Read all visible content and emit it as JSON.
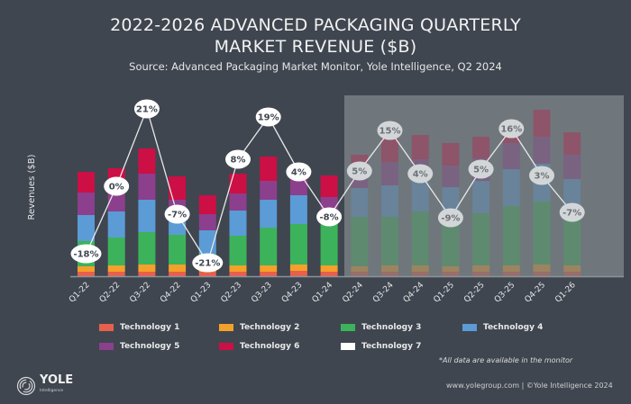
{
  "header": {
    "title_line1": "2022-2026 ADVANCED PACKAGING QUARTERLY",
    "title_line2": "MARKET REVENUE ($B)",
    "subtitle": "Source: Advanced Packaging Market Monitor, Yole Intelligence, Q2 2024"
  },
  "chart_data": {
    "type": "bar",
    "stacked": true,
    "title": "2022-2026 ADVANCED PACKAGING QUARTERLY MARKET REVENUE ($B)",
    "ylabel": "Revenues ($B)",
    "xlabel": "",
    "categories": [
      "Q1-22",
      "Q2-22",
      "Q3-22",
      "Q4-22",
      "Q1-23",
      "Q2-23",
      "Q3-23",
      "Q4-23",
      "Q1-24",
      "Q2-24",
      "Q3-24",
      "Q4-24",
      "Q1-25",
      "Q2-25",
      "Q3-25",
      "Q4-25",
      "Q1-26"
    ],
    "forecast_start_index": 9,
    "series": [
      {
        "name": "Technology 1",
        "color": "#e8604c",
        "values": [
          0.5,
          0.5,
          0.5,
          0.5,
          0.5,
          0.5,
          0.5,
          0.6,
          0.5,
          0.5,
          0.5,
          0.5,
          0.5,
          0.5,
          0.5,
          0.5,
          0.5
        ]
      },
      {
        "name": "Technology 2",
        "color": "#f5a02a",
        "values": [
          0.6,
          0.7,
          0.8,
          0.8,
          0.6,
          0.7,
          0.7,
          0.7,
          0.7,
          0.6,
          0.7,
          0.7,
          0.6,
          0.7,
          0.7,
          0.8,
          0.7
        ]
      },
      {
        "name": "Technology 3",
        "color": "#3cb35a",
        "values": [
          2.8,
          3.1,
          3.6,
          3.3,
          1.4,
          3.3,
          4.2,
          4.5,
          4.7,
          5.5,
          5.4,
          6.0,
          5.0,
          5.8,
          6.6,
          7.0,
          6.1
        ]
      },
      {
        "name": "Technology 4",
        "color": "#5b9bd6",
        "values": [
          2.9,
          2.9,
          3.6,
          1.5,
          2.6,
          2.8,
          3.1,
          3.2,
          0.8,
          3.2,
          3.5,
          3.5,
          3.8,
          3.6,
          4.1,
          4.2,
          3.5
        ]
      },
      {
        "name": "Technology 5",
        "color": "#8c3f8c",
        "values": [
          2.5,
          2.5,
          2.9,
          2.4,
          1.8,
          1.9,
          2.1,
          1.7,
          2.1,
          2.2,
          2.6,
          2.3,
          2.4,
          2.5,
          2.9,
          3.0,
          2.7
        ]
      },
      {
        "name": "Technology 6",
        "color": "#cc0f45",
        "values": [
          2.3,
          2.3,
          2.8,
          2.6,
          2.1,
          2.2,
          2.7,
          1.4,
          2.4,
          1.5,
          2.6,
          2.7,
          2.5,
          2.4,
          2.5,
          3.0,
          2.5
        ]
      },
      {
        "name": "Technology 7",
        "color": "#ffffff",
        "values": [
          0,
          0,
          0,
          0,
          0,
          0,
          0,
          0,
          0,
          0,
          0,
          0,
          0,
          0,
          0,
          0,
          0
        ]
      }
    ],
    "growth_qoq_percent": [
      "-18%",
      "0%",
      "21%",
      "-7%",
      "-21%",
      "8%",
      "19%",
      "4%",
      "-8%",
      "5%",
      "15%",
      "4%",
      "-9%",
      "5%",
      "16%",
      "3%",
      "-7%"
    ],
    "legend_position": "bottom",
    "grid": false,
    "note": "*All data are available in the monitor"
  },
  "legend": [
    {
      "label": "Technology 1",
      "color": "#e8604c"
    },
    {
      "label": "Technology 2",
      "color": "#f5a02a"
    },
    {
      "label": "Technology 3",
      "color": "#3cb35a"
    },
    {
      "label": "Technology 4",
      "color": "#5b9bd6"
    },
    {
      "label": "Technology 5",
      "color": "#8c3f8c"
    },
    {
      "label": "Technology 6",
      "color": "#cc0f45"
    },
    {
      "label": "Technology 7",
      "color": "#ffffff"
    }
  ],
  "footer": {
    "note": "*All data are available in the monitor",
    "copyright": "www.yolegroup.com | ©Yole Intelligence 2024",
    "logo_name": "YOLE",
    "logo_sub": "Intelligence"
  }
}
